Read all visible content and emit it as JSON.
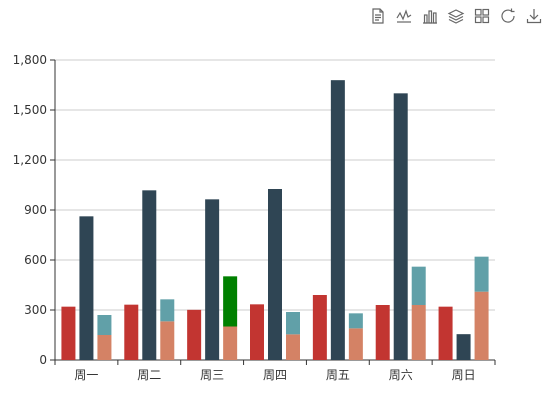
{
  "toolbar": {
    "icons": [
      "data-view-icon",
      "line-chart-icon",
      "bar-chart-icon",
      "stack-icon",
      "tiled-icon",
      "restore-icon",
      "download-icon"
    ]
  },
  "chart_data": {
    "type": "bar",
    "title": "",
    "xlabel": "",
    "ylabel": "",
    "ylim": [
      0,
      1800
    ],
    "yticks": [
      0,
      300,
      600,
      900,
      1200,
      1500,
      1800
    ],
    "ytick_labels": [
      "0",
      "300",
      "600",
      "900",
      "1,200",
      "1,500",
      "1,800"
    ],
    "grid": true,
    "categories": [
      "周一",
      "周二",
      "周三",
      "周四",
      "周五",
      "周六",
      "周日"
    ],
    "series": [
      {
        "color": "#c23531",
        "values": [
          320,
          332,
          301,
          334,
          390,
          330,
          320
        ]
      },
      {
        "color": "#2f4554",
        "values": [
          862,
          1018,
          964,
          1026,
          1679,
          1600,
          155
        ]
      },
      {
        "color": "#d48265",
        "stack": "s",
        "values": [
          150,
          232,
          201,
          154,
          190,
          330,
          410
        ]
      },
      {
        "color": "#61a0a8",
        "stack": "s",
        "values": [
          120,
          132,
          301,
          134,
          90,
          230,
          210
        ]
      }
    ],
    "highlight": {
      "category": "周三",
      "series": 3,
      "color": "#008000"
    }
  }
}
